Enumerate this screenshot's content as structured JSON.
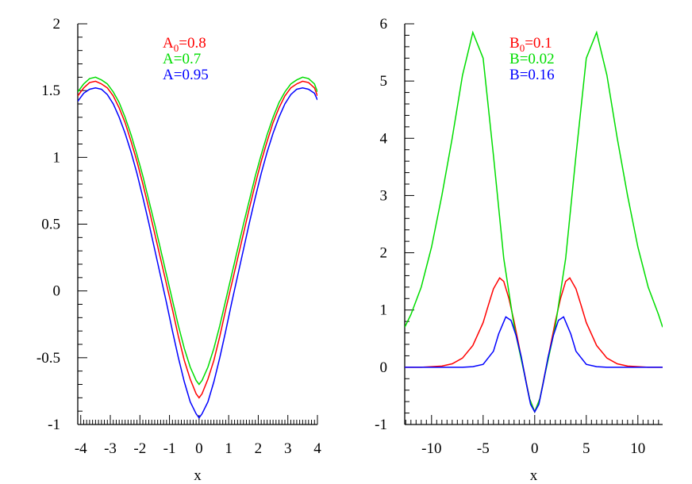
{
  "chart_data": [
    {
      "type": "line",
      "xlabel": "x",
      "ylabel": "",
      "xlim": [
        -4.1,
        4
      ],
      "ylim": [
        -1,
        2
      ],
      "xticks": [
        "-4",
        "-3",
        "-2",
        "-1",
        "0",
        "1",
        "2",
        "3",
        "4"
      ],
      "xtick_values": [
        -4,
        -3,
        -2,
        -1,
        0,
        1,
        2,
        3,
        4
      ],
      "yticks": [
        "-1",
        "-0.5",
        "0",
        "0.5",
        "1",
        "1.5",
        "2"
      ],
      "ytick_values": [
        -1,
        -0.5,
        0,
        0.5,
        1,
        1.5,
        2
      ],
      "legend_position": "top-center",
      "legend": [
        {
          "base": "A",
          "sub": "0",
          "value": "=0.8",
          "color": "#ff0000"
        },
        {
          "base": "A",
          "sub": "",
          "value": "=0.7",
          "color": "#00dd00"
        },
        {
          "base": "A",
          "sub": "",
          "value": "=0.95",
          "color": "#0000ff"
        }
      ],
      "series": [
        {
          "color": "#ff0000",
          "x": [
            -4.1,
            -3.9,
            -3.7,
            -3.5,
            -3.3,
            -3.1,
            -2.9,
            -2.7,
            -2.5,
            -2.3,
            -2.1,
            -1.9,
            -1.7,
            -1.5,
            -1.3,
            -1.1,
            -0.9,
            -0.7,
            -0.5,
            -0.3,
            -0.1,
            0.0,
            0.1,
            0.3,
            0.5,
            0.7,
            0.9,
            1.1,
            1.3,
            1.5,
            1.7,
            1.9,
            2.1,
            2.3,
            2.5,
            2.7,
            2.9,
            3.1,
            3.3,
            3.5,
            3.7,
            3.9,
            4.0
          ],
          "y": [
            1.46,
            1.52,
            1.56,
            1.57,
            1.55,
            1.52,
            1.46,
            1.37,
            1.26,
            1.12,
            0.97,
            0.8,
            0.62,
            0.43,
            0.24,
            0.05,
            -0.14,
            -0.34,
            -0.52,
            -0.66,
            -0.77,
            -0.8,
            -0.77,
            -0.66,
            -0.52,
            -0.34,
            -0.14,
            0.05,
            0.24,
            0.43,
            0.62,
            0.8,
            0.97,
            1.12,
            1.26,
            1.37,
            1.46,
            1.52,
            1.55,
            1.57,
            1.56,
            1.52,
            1.46
          ]
        },
        {
          "color": "#00dd00",
          "x": [
            -4.1,
            -3.9,
            -3.7,
            -3.5,
            -3.3,
            -3.1,
            -2.9,
            -2.7,
            -2.5,
            -2.3,
            -2.1,
            -1.9,
            -1.7,
            -1.5,
            -1.3,
            -1.1,
            -0.9,
            -0.7,
            -0.5,
            -0.3,
            -0.1,
            0.0,
            0.1,
            0.3,
            0.5,
            0.7,
            0.9,
            1.1,
            1.3,
            1.5,
            1.7,
            1.9,
            2.1,
            2.3,
            2.5,
            2.7,
            2.9,
            3.1,
            3.3,
            3.5,
            3.7,
            3.9,
            4.0
          ],
          "y": [
            1.49,
            1.55,
            1.59,
            1.6,
            1.58,
            1.55,
            1.49,
            1.41,
            1.3,
            1.17,
            1.02,
            0.86,
            0.68,
            0.5,
            0.31,
            0.12,
            -0.07,
            -0.26,
            -0.43,
            -0.57,
            -0.67,
            -0.7,
            -0.67,
            -0.57,
            -0.43,
            -0.26,
            -0.07,
            0.12,
            0.31,
            0.5,
            0.68,
            0.86,
            1.02,
            1.17,
            1.3,
            1.41,
            1.49,
            1.55,
            1.58,
            1.6,
            1.59,
            1.55,
            1.49
          ]
        },
        {
          "color": "#0000ff",
          "x": [
            -4.1,
            -3.9,
            -3.7,
            -3.5,
            -3.3,
            -3.1,
            -2.9,
            -2.7,
            -2.5,
            -2.3,
            -2.1,
            -1.9,
            -1.7,
            -1.5,
            -1.3,
            -1.1,
            -0.9,
            -0.7,
            -0.5,
            -0.3,
            -0.1,
            0.0,
            0.1,
            0.3,
            0.5,
            0.7,
            0.9,
            1.1,
            1.3,
            1.5,
            1.7,
            1.9,
            2.1,
            2.3,
            2.5,
            2.7,
            2.9,
            3.1,
            3.3,
            3.5,
            3.7,
            3.9,
            4.0
          ],
          "y": [
            1.42,
            1.48,
            1.51,
            1.52,
            1.51,
            1.47,
            1.4,
            1.3,
            1.18,
            1.04,
            0.88,
            0.7,
            0.51,
            0.31,
            0.11,
            -0.09,
            -0.3,
            -0.5,
            -0.68,
            -0.83,
            -0.92,
            -0.95,
            -0.92,
            -0.83,
            -0.68,
            -0.5,
            -0.3,
            -0.09,
            0.11,
            0.31,
            0.51,
            0.7,
            0.88,
            1.04,
            1.18,
            1.3,
            1.4,
            1.47,
            1.51,
            1.52,
            1.51,
            1.48,
            1.43
          ]
        }
      ]
    },
    {
      "type": "line",
      "xlabel": "x",
      "ylabel": "",
      "xlim": [
        -12.6,
        12.4
      ],
      "ylim": [
        -1,
        6
      ],
      "xticks": [
        "-10",
        "-5",
        "0",
        "5",
        "10"
      ],
      "xtick_values": [
        -10,
        -5,
        0,
        5,
        10
      ],
      "yticks": [
        "-1",
        "0",
        "1",
        "2",
        "3",
        "4",
        "5",
        "6"
      ],
      "ytick_values": [
        -1,
        0,
        1,
        2,
        3,
        4,
        5,
        6
      ],
      "legend_position": "top-center",
      "legend": [
        {
          "base": "B",
          "sub": "0",
          "value": "=0.1",
          "color": "#ff0000"
        },
        {
          "base": "B",
          "sub": "",
          "value": "=0.02",
          "color": "#00dd00"
        },
        {
          "base": "B",
          "sub": "",
          "value": "=0.16",
          "color": "#0000ff"
        }
      ],
      "series": [
        {
          "color": "#ff0000",
          "x": [
            -12.6,
            -11,
            -10,
            -9,
            -8,
            -7,
            -6,
            -5,
            -4.5,
            -4,
            -3.4,
            -3,
            -2.5,
            -2,
            -1.5,
            -1,
            -0.5,
            0,
            0.5,
            1,
            1.5,
            2,
            2.5,
            3,
            3.4,
            4,
            4.5,
            5,
            6,
            7,
            8,
            9,
            10,
            11,
            12.4
          ],
          "y": [
            0.0,
            0.0,
            0.01,
            0.02,
            0.06,
            0.16,
            0.38,
            0.78,
            1.08,
            1.37,
            1.56,
            1.5,
            1.2,
            0.8,
            0.35,
            -0.1,
            -0.55,
            -0.78,
            -0.55,
            -0.1,
            0.35,
            0.8,
            1.2,
            1.5,
            1.56,
            1.37,
            1.08,
            0.78,
            0.38,
            0.16,
            0.06,
            0.02,
            0.01,
            0.0,
            0.0
          ]
        },
        {
          "color": "#00dd00",
          "x": [
            -12.6,
            -12,
            -11,
            -10,
            -9,
            -8,
            -7,
            -6,
            -5,
            -4,
            -3,
            -2,
            -1.5,
            -1,
            -0.5,
            0,
            0.5,
            1,
            1.5,
            2,
            3,
            4,
            5,
            6,
            7,
            8,
            9,
            10,
            11,
            12,
            12.4
          ],
          "y": [
            0.7,
            0.92,
            1.4,
            2.1,
            3.0,
            4.0,
            5.1,
            5.85,
            5.4,
            3.7,
            1.9,
            0.72,
            0.3,
            -0.12,
            -0.55,
            -0.78,
            -0.55,
            -0.12,
            0.3,
            0.72,
            1.9,
            3.7,
            5.4,
            5.85,
            5.1,
            4.0,
            3.0,
            2.1,
            1.4,
            0.92,
            0.7
          ]
        },
        {
          "color": "#0000ff",
          "x": [
            -12.6,
            -10,
            -8,
            -7,
            -6,
            -5,
            -4,
            -3.5,
            -2.8,
            -2.3,
            -1.8,
            -1.3,
            -0.8,
            -0.4,
            0,
            0.4,
            0.8,
            1.3,
            1.8,
            2.3,
            2.8,
            3.5,
            4,
            5,
            6,
            7,
            8,
            10,
            12.4
          ],
          "y": [
            0.0,
            0.0,
            0.0,
            0.0,
            0.01,
            0.05,
            0.28,
            0.58,
            0.88,
            0.82,
            0.55,
            0.18,
            -0.3,
            -0.65,
            -0.78,
            -0.65,
            -0.3,
            0.18,
            0.55,
            0.82,
            0.88,
            0.58,
            0.28,
            0.05,
            0.01,
            0.0,
            0.0,
            0.0,
            0.0
          ]
        }
      ]
    }
  ]
}
